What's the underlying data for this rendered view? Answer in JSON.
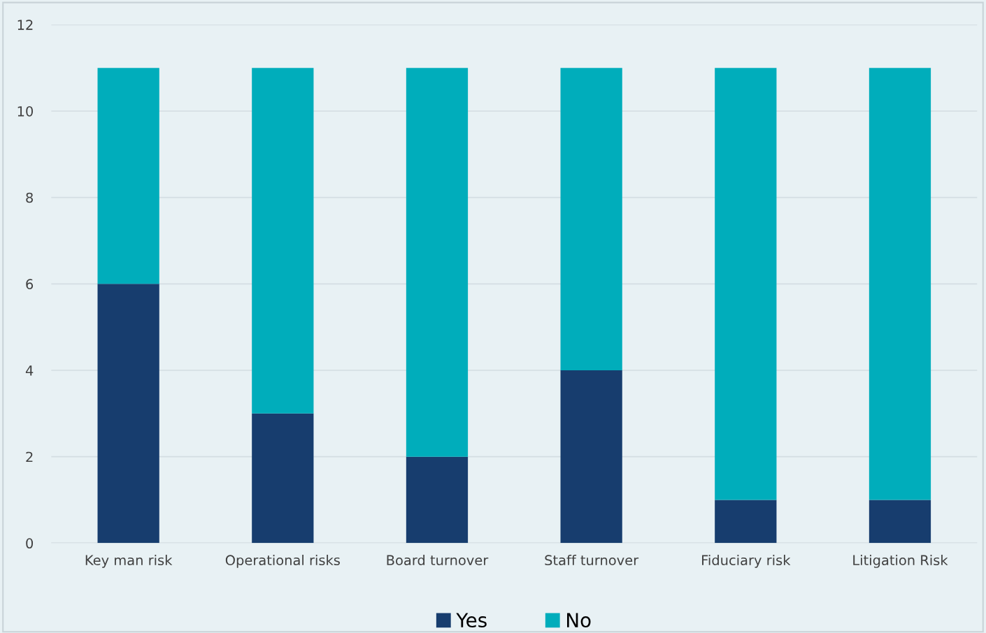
{
  "chart_data": {
    "type": "bar",
    "stacked": true,
    "categories": [
      "Key man risk",
      "Operational risks",
      "Board turnover",
      "Staff turnover",
      "Fiduciary risk",
      "Litigation Risk"
    ],
    "series": [
      {
        "name": "Yes",
        "color": "#173d6e",
        "values": [
          6,
          3,
          2,
          4,
          1,
          1
        ]
      },
      {
        "name": "No",
        "color": "#00adbb",
        "values": [
          5,
          8,
          9,
          7,
          10,
          10
        ]
      }
    ],
    "ylim": [
      0,
      12
    ],
    "yticks": [
      0,
      2,
      4,
      6,
      8,
      10,
      12
    ],
    "grid": "y",
    "legend": "bottom"
  }
}
